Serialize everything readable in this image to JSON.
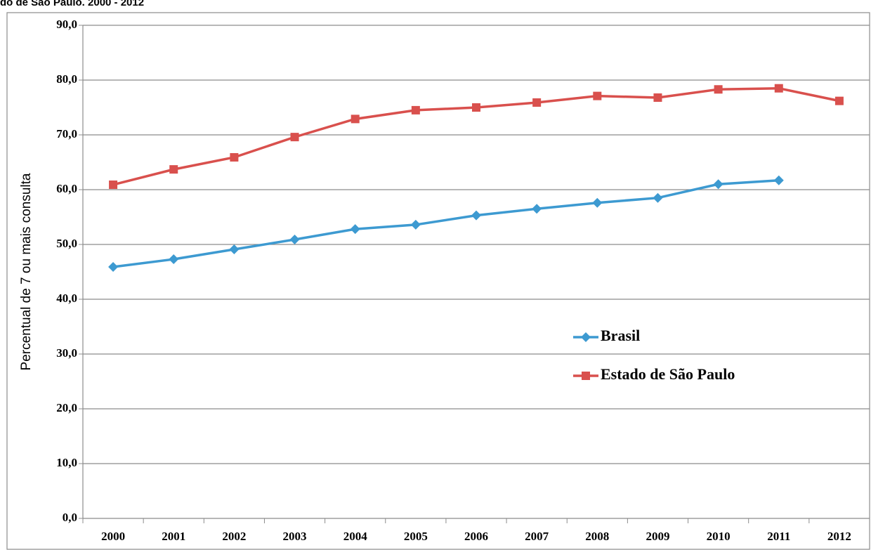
{
  "chart_data": {
    "type": "line",
    "title": "do de São Paulo. 2000 - 2012",
    "y_label": "Percentual de 7 ou mais consulta",
    "categories": [
      "2000",
      "2001",
      "2002",
      "2003",
      "2004",
      "2005",
      "2006",
      "2007",
      "2008",
      "2009",
      "2010",
      "2011",
      "2012"
    ],
    "series": [
      {
        "name": "Brasil",
        "color": "#3d9ad1",
        "marker": "diamond",
        "values": [
          45.9,
          47.3,
          49.1,
          50.9,
          52.8,
          53.6,
          55.3,
          56.5,
          57.6,
          58.5,
          61.0,
          61.7,
          null
        ]
      },
      {
        "name": "Estado de São Paulo",
        "color": "#d9504d",
        "marker": "square",
        "values": [
          60.9,
          63.7,
          65.9,
          69.6,
          72.9,
          74.5,
          75.0,
          75.9,
          77.1,
          76.8,
          78.3,
          78.5,
          76.2
        ]
      }
    ],
    "ylim": [
      0,
      90
    ],
    "yticks": [
      {
        "value": 0,
        "label": "0,0"
      },
      {
        "value": 10,
        "label": "10,0"
      },
      {
        "value": 20,
        "label": "20,0"
      },
      {
        "value": 30,
        "label": "30,0"
      },
      {
        "value": 40,
        "label": "40,0"
      },
      {
        "value": 50,
        "label": "50,0"
      },
      {
        "value": 60,
        "label": "60,0"
      },
      {
        "value": 70,
        "label": "70,0"
      },
      {
        "value": 80,
        "label": "80,0"
      },
      {
        "value": 90,
        "label": "90,0"
      }
    ],
    "grid": true
  }
}
